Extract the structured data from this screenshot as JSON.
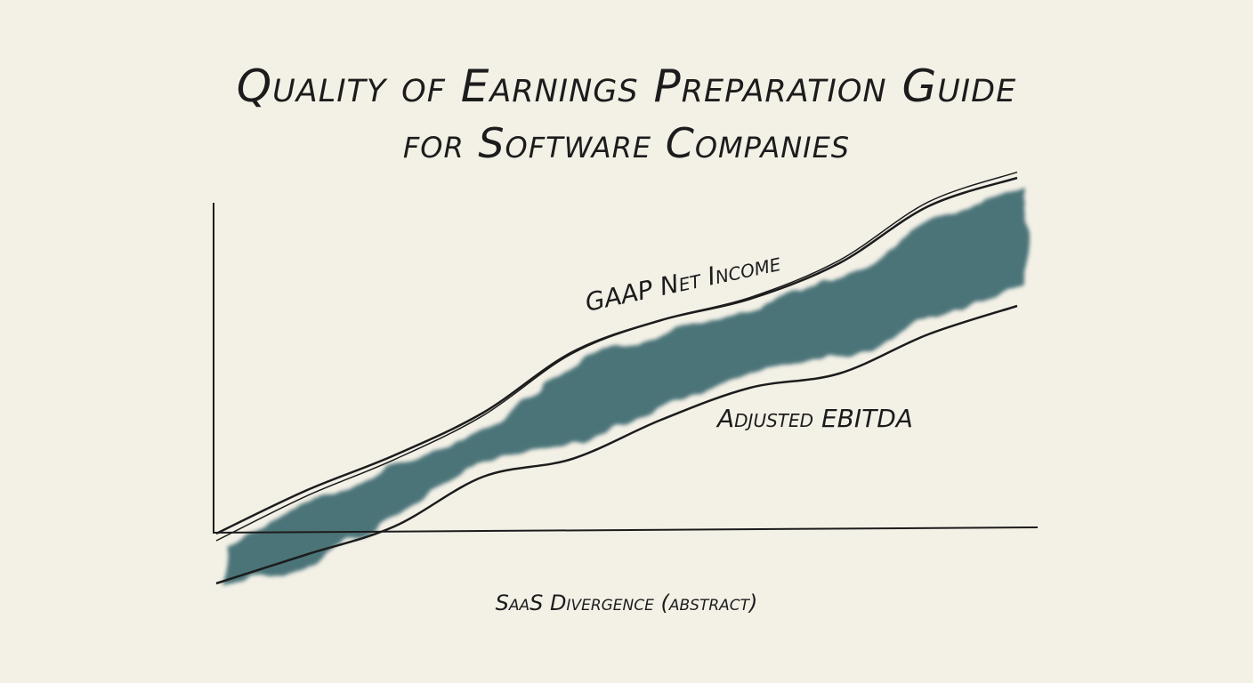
{
  "chart_data": {
    "type": "line",
    "title": "Quality of Earnings Preparation Guide",
    "subtitle": "for Software Companies",
    "caption": "SaaS Divergence (abstract)",
    "x": [
      0,
      1,
      2,
      3,
      4,
      5,
      6,
      7,
      8,
      9
    ],
    "series": [
      {
        "name": "GAAP Net Income",
        "values": [
          0,
          12,
          22,
          34,
          51,
          60,
          66,
          76,
          92,
          100
        ]
      },
      {
        "name": "Adjusted EBITDA",
        "values": [
          -14,
          -6,
          2,
          16,
          21,
          32,
          41,
          45,
          56,
          64
        ]
      }
    ],
    "xlim": [
      0,
      9
    ],
    "ylim": [
      -15,
      105
    ],
    "grid": false,
    "legend": "inline labels",
    "axis_ticks": false,
    "colors": {
      "band": "#2e5f66",
      "line": "#1c1c1c",
      "background": "#f3f0e6"
    }
  }
}
